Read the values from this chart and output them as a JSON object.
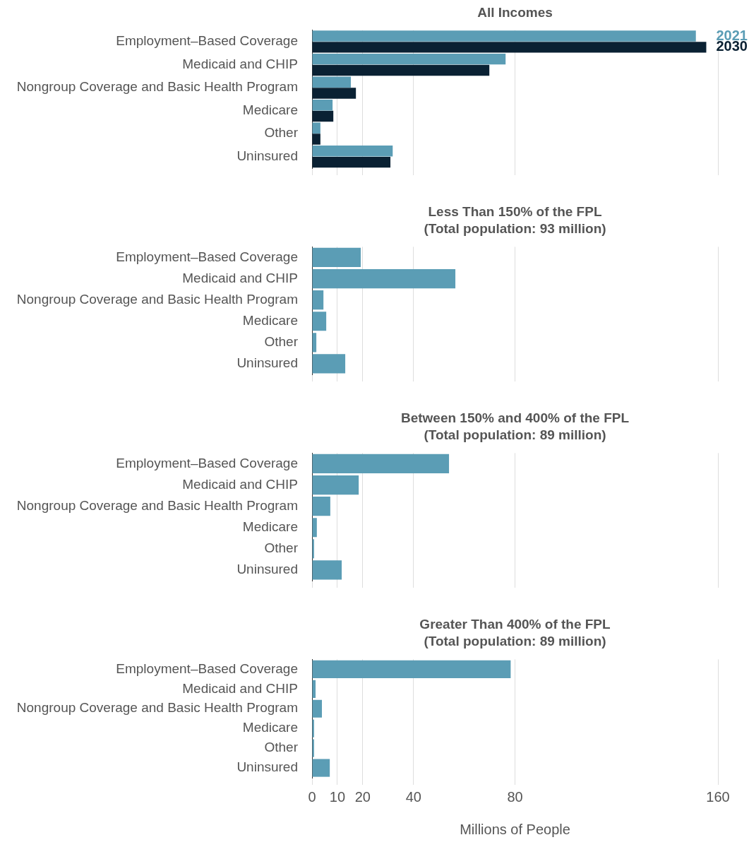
{
  "chart_data": [
    {
      "type": "bar",
      "orientation": "horizontal",
      "title": "All Incomes",
      "categories": [
        "Employment–Based Coverage",
        "Medicaid and CHIP",
        "Nongroup Coverage and Basic Health Program",
        "Medicare",
        "Other",
        "Uninsured"
      ],
      "series": [
        {
          "name": "2021",
          "color": "#5b9db5",
          "values": [
            151.3,
            76.3,
            15.3,
            8.1,
            3.3,
            31.8
          ]
        },
        {
          "name": "2030",
          "color": "#0a2133",
          "values": [
            155.4,
            69.9,
            17.3,
            8.4,
            3.3,
            30.9
          ]
        }
      ],
      "xlim": [
        0,
        160
      ],
      "xticks": [
        0,
        10,
        20,
        40,
        80,
        160
      ],
      "grid": "x",
      "legend": "top right",
      "tick_labels": "y"
    },
    {
      "type": "bar",
      "orientation": "horizontal",
      "title": "Less Than 150% of the FPL\n(Total population: 93 million)",
      "categories": [
        "Employment–Based Coverage",
        "Medicaid and CHIP",
        "Nongroup Coverage and Basic Health Program",
        "Medicare",
        "Other",
        "Uninsured"
      ],
      "series": [
        {
          "color": "#5b9db5",
          "values": [
            19.2,
            56.5,
            4.5,
            5.6,
            1.7,
            13.1
          ]
        }
      ],
      "xlim": [
        0,
        160
      ],
      "xticks": [
        0,
        10,
        20,
        40,
        80,
        160
      ],
      "grid": "x",
      "tick_labels": "y"
    },
    {
      "type": "bar",
      "orientation": "horizontal",
      "title": "Between 150% and 400% of the FPL\n(Total population: 89 million)",
      "categories": [
        "Employment–Based Coverage",
        "Medicaid and CHIP",
        "Nongroup Coverage and Basic Health Program",
        "Medicare",
        "Other",
        "Uninsured"
      ],
      "series": [
        {
          "color": "#5b9db5",
          "values": [
            54,
            18.4,
            7.2,
            1.9,
            0.8,
            11.7
          ]
        }
      ],
      "xlim": [
        0,
        160
      ],
      "xticks": [
        0,
        10,
        20,
        40,
        80,
        160
      ],
      "grid": "x",
      "tick_labels": "y"
    },
    {
      "type": "bar",
      "orientation": "horizontal",
      "title": "Greater Than 400% of the FPL\n(Total population: 89 million)",
      "xlabel": "Millions of People",
      "categories": [
        "Employment–Based Coverage",
        "Medicaid and CHIP",
        "Nongroup Coverage and Basic Health Program",
        "Medicare",
        "Other",
        "Uninsured"
      ],
      "series": [
        {
          "color": "#5b9db5",
          "values": [
            78.3,
            1.4,
            3.9,
            0.8,
            0.8,
            7
          ]
        }
      ],
      "xlim": [
        0,
        160
      ],
      "xticks": [
        0,
        10,
        20,
        40,
        80,
        160
      ],
      "grid": "x"
    }
  ]
}
